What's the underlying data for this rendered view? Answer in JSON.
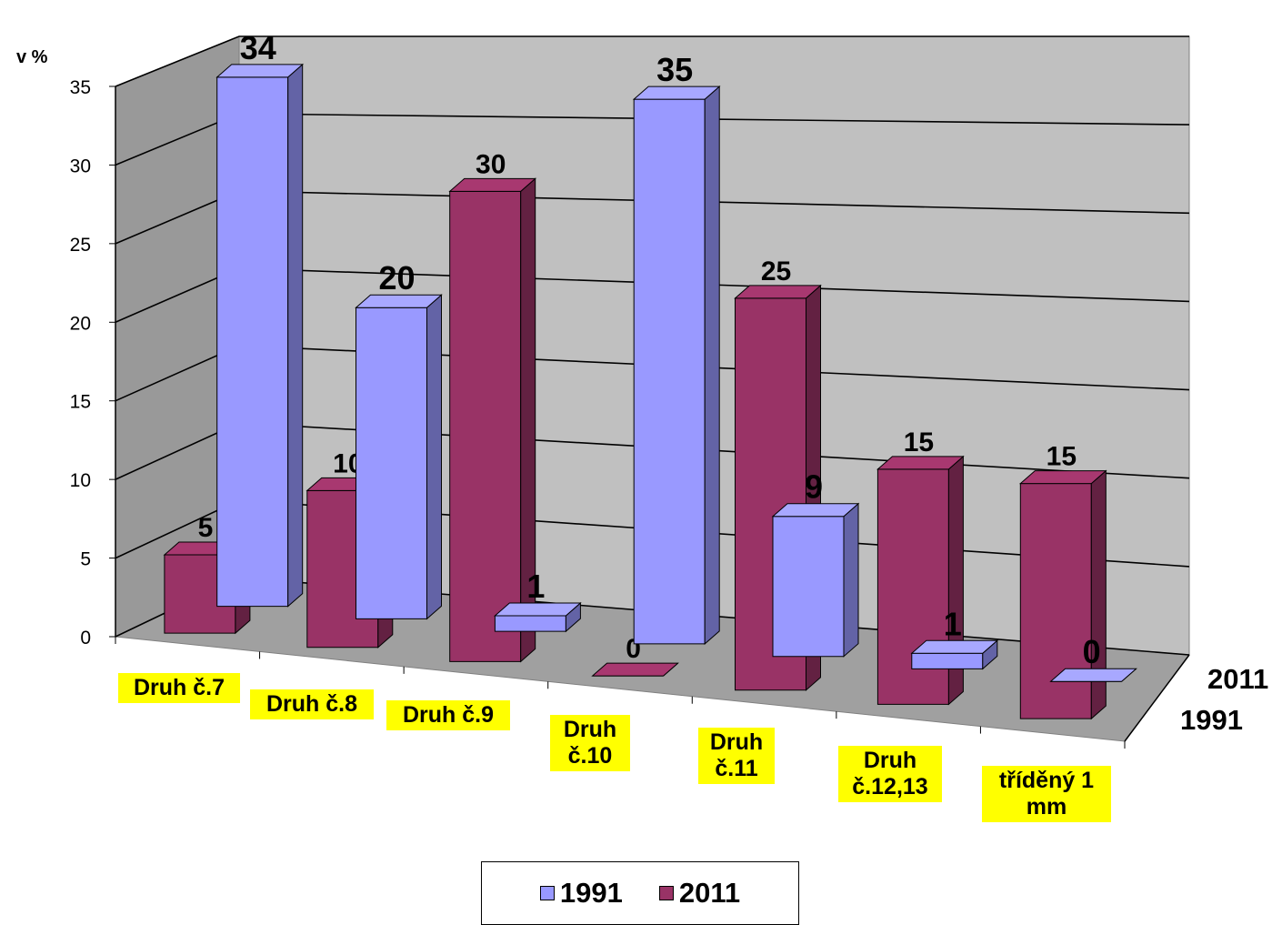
{
  "chart_data": {
    "type": "bar",
    "ylabel": "v %",
    "ylim": [
      0,
      35
    ],
    "yticks": [
      0,
      5,
      10,
      15,
      20,
      25,
      30,
      35
    ],
    "categories": [
      "Druh č.7",
      "Druh č.8",
      "Druh č.9",
      "Druh č.10",
      "Druh č.11",
      "Druh č.12,13",
      "tříděný 1 mm"
    ],
    "series": [
      {
        "name": "1991",
        "values": [
          34,
          20,
          1,
          35,
          9,
          1,
          0
        ],
        "color": "#9999ff"
      },
      {
        "name": "2011",
        "values": [
          5,
          10,
          30,
          0,
          25,
          15,
          15
        ],
        "color": "#993366"
      }
    ],
    "depth_labels": [
      "2011",
      "1991"
    ],
    "legend_position": "bottom",
    "grid": true
  }
}
